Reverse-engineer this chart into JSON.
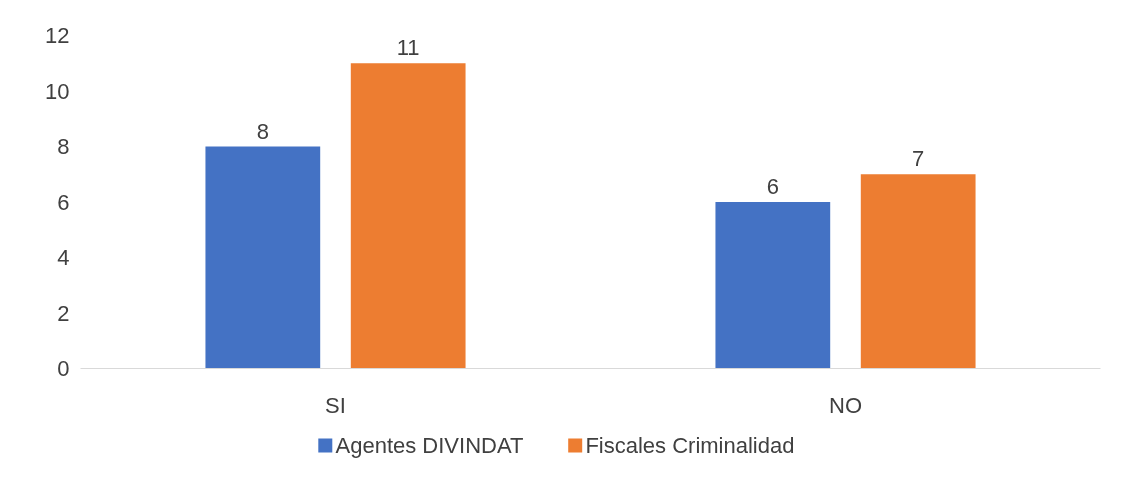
{
  "chart_data": {
    "type": "bar",
    "categories": [
      "SI",
      "NO"
    ],
    "series": [
      {
        "name": "Agentes DIVINDAT",
        "color": "#4472c4",
        "values": [
          8,
          6
        ]
      },
      {
        "name": "Fiscales Criminalidad",
        "color": "#ed7d31",
        "values": [
          11,
          7
        ]
      }
    ],
    "ylim": [
      0,
      12
    ],
    "yticks": [
      0,
      2,
      4,
      6,
      8,
      10,
      12
    ],
    "grid": false,
    "legend": "bottom",
    "data_labels": true
  }
}
